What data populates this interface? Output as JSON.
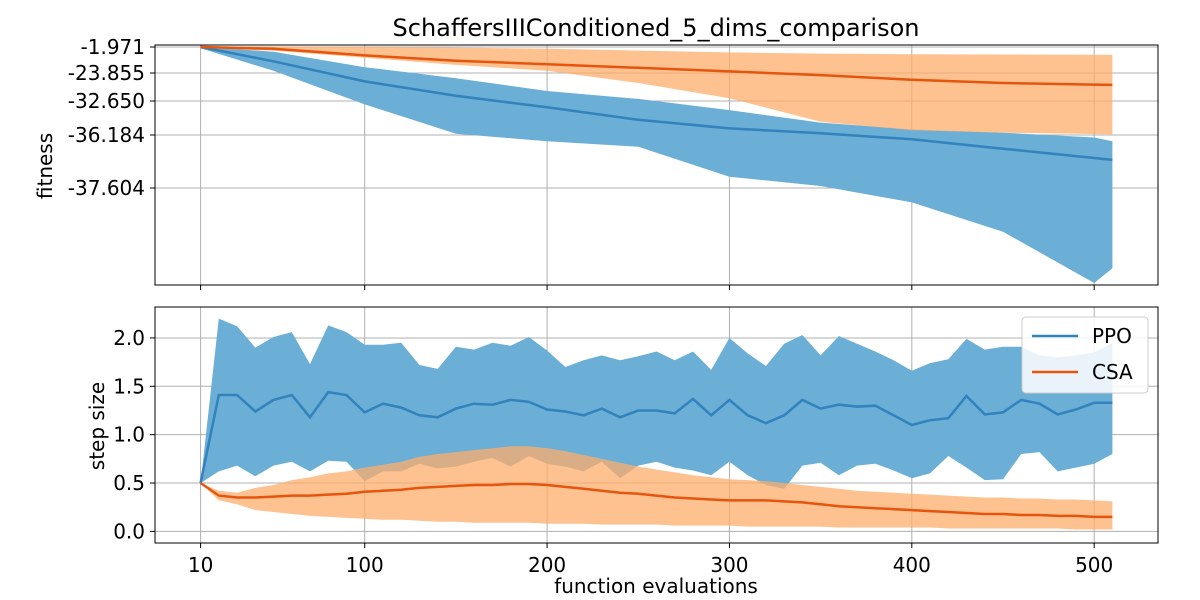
{
  "title": "SchaffersIIIConditioned_5_dims_comparison",
  "chart_data": [
    {
      "type": "line",
      "panel": "top",
      "ylabel": "fitness",
      "y_scale": "nonlinear (tick labels unevenly spaced)",
      "y_tick_labels": [
        "-1.971",
        "-23.855",
        "-32.650",
        "-36.184",
        "-37.604"
      ],
      "x_ticks": [
        10,
        100,
        200,
        300,
        400,
        500
      ],
      "grid": true,
      "series": [
        {
          "name": "PPO",
          "color": "#3182bd",
          "x": [
            10,
            50,
            100,
            150,
            200,
            250,
            300,
            350,
            400,
            450,
            500,
            510
          ],
          "mean": [
            -1.971,
            -14.0,
            -26.5,
            -31.0,
            -33.3,
            -34.6,
            -35.5,
            -36.0,
            -36.3,
            -36.55,
            -36.8,
            -36.85
          ],
          "lower": [
            -3.0,
            -22.0,
            -33.0,
            -36.05,
            -36.35,
            -36.5,
            -37.3,
            -37.55,
            -37.8,
            -38.2,
            -38.9,
            -38.7
          ],
          "upper": [
            -1.5,
            -6.0,
            -19.0,
            -25.5,
            -29.5,
            -32.0,
            -33.6,
            -34.9,
            -35.6,
            -35.95,
            -36.25,
            -36.35
          ]
        },
        {
          "name": "CSA",
          "color": "#e6550d",
          "x": [
            10,
            50,
            100,
            150,
            200,
            250,
            300,
            350,
            400,
            450,
            500,
            510
          ],
          "mean": [
            -1.971,
            -3.5,
            -9.0,
            -13.5,
            -16.5,
            -19.5,
            -22.5,
            -24.5,
            -26.0,
            -27.0,
            -27.5,
            -27.6
          ],
          "lower": [
            -3.0,
            -5.0,
            -11.0,
            -17.0,
            -22.0,
            -27.0,
            -31.8,
            -34.8,
            -35.7,
            -35.95,
            -36.08,
            -36.1
          ],
          "upper": [
            -1.3,
            -1.6,
            -1.8,
            -2.5,
            -3.5,
            -5.0,
            -6.5,
            -7.5,
            -8.0,
            -8.3,
            -8.5,
            -8.5
          ]
        }
      ]
    },
    {
      "type": "line",
      "panel": "bottom",
      "xlabel": "function evaluations",
      "ylabel": "step size",
      "xlim": [
        -15,
        535
      ],
      "ylim": [
        -0.12,
        2.32
      ],
      "x_ticks": [
        10,
        100,
        200,
        300,
        400,
        500
      ],
      "y_ticks": [
        0.0,
        0.5,
        1.0,
        1.5,
        2.0
      ],
      "y_tick_labels": [
        "0.0",
        "0.5",
        "1.0",
        "1.5",
        "2.0"
      ],
      "grid": true,
      "legend": "top-right",
      "series": [
        {
          "name": "PPO",
          "color": "#3182bd",
          "x": [
            10,
            20,
            30,
            40,
            50,
            60,
            70,
            80,
            90,
            100,
            110,
            120,
            130,
            140,
            150,
            160,
            170,
            180,
            190,
            200,
            210,
            220,
            230,
            240,
            250,
            260,
            270,
            280,
            290,
            300,
            310,
            320,
            330,
            340,
            350,
            360,
            370,
            380,
            390,
            400,
            410,
            420,
            430,
            440,
            450,
            460,
            470,
            480,
            490,
            500,
            510
          ],
          "mean": [
            0.5,
            1.41,
            1.41,
            1.24,
            1.36,
            1.41,
            1.18,
            1.44,
            1.41,
            1.23,
            1.32,
            1.28,
            1.2,
            1.18,
            1.27,
            1.32,
            1.31,
            1.36,
            1.34,
            1.26,
            1.24,
            1.2,
            1.27,
            1.18,
            1.25,
            1.25,
            1.22,
            1.37,
            1.2,
            1.36,
            1.2,
            1.12,
            1.2,
            1.36,
            1.27,
            1.31,
            1.29,
            1.3,
            1.2,
            1.1,
            1.15,
            1.17,
            1.4,
            1.21,
            1.23,
            1.36,
            1.32,
            1.21,
            1.26,
            1.33,
            1.33
          ],
          "lower": [
            0.5,
            0.62,
            0.68,
            0.57,
            0.68,
            0.72,
            0.62,
            0.73,
            0.72,
            0.52,
            0.62,
            0.62,
            0.7,
            0.65,
            0.67,
            0.72,
            0.76,
            0.67,
            0.78,
            0.7,
            0.67,
            0.62,
            0.72,
            0.55,
            0.68,
            0.72,
            0.66,
            0.63,
            0.58,
            0.72,
            0.58,
            0.48,
            0.44,
            0.68,
            0.71,
            0.58,
            0.68,
            0.7,
            0.63,
            0.55,
            0.6,
            0.78,
            0.66,
            0.53,
            0.54,
            0.8,
            0.82,
            0.62,
            0.66,
            0.7,
            0.8
          ],
          "upper": [
            0.5,
            2.2,
            2.12,
            1.9,
            2.01,
            2.06,
            1.73,
            2.13,
            2.06,
            1.93,
            1.93,
            1.95,
            1.72,
            1.68,
            1.91,
            1.88,
            1.95,
            1.92,
            2.01,
            1.87,
            1.7,
            1.77,
            1.82,
            1.77,
            1.81,
            1.86,
            1.77,
            1.86,
            1.67,
            2.0,
            1.84,
            1.71,
            1.94,
            2.03,
            1.82,
            2.02,
            1.94,
            1.86,
            1.77,
            1.66,
            1.74,
            1.78,
            1.99,
            1.88,
            1.91,
            1.91,
            1.82,
            1.8,
            1.82,
            1.85,
            1.95
          ]
        },
        {
          "name": "CSA",
          "color": "#e6550d",
          "x": [
            10,
            20,
            30,
            40,
            50,
            60,
            70,
            80,
            90,
            100,
            110,
            120,
            130,
            140,
            150,
            160,
            170,
            180,
            190,
            200,
            210,
            220,
            230,
            240,
            250,
            260,
            270,
            280,
            290,
            300,
            310,
            320,
            330,
            340,
            350,
            360,
            370,
            380,
            390,
            400,
            410,
            420,
            430,
            440,
            450,
            460,
            470,
            480,
            490,
            500,
            510
          ],
          "mean": [
            0.5,
            0.37,
            0.35,
            0.35,
            0.36,
            0.37,
            0.37,
            0.38,
            0.39,
            0.41,
            0.42,
            0.43,
            0.45,
            0.46,
            0.47,
            0.48,
            0.48,
            0.49,
            0.49,
            0.48,
            0.46,
            0.44,
            0.42,
            0.4,
            0.39,
            0.37,
            0.35,
            0.34,
            0.33,
            0.32,
            0.32,
            0.32,
            0.31,
            0.3,
            0.28,
            0.26,
            0.25,
            0.24,
            0.23,
            0.22,
            0.21,
            0.2,
            0.19,
            0.18,
            0.18,
            0.17,
            0.17,
            0.16,
            0.16,
            0.15,
            0.15
          ],
          "lower": [
            0.5,
            0.32,
            0.28,
            0.22,
            0.2,
            0.18,
            0.16,
            0.15,
            0.14,
            0.13,
            0.12,
            0.12,
            0.11,
            0.1,
            0.1,
            0.09,
            0.09,
            0.09,
            0.09,
            0.08,
            0.08,
            0.08,
            0.07,
            0.07,
            0.07,
            0.07,
            0.06,
            0.06,
            0.06,
            0.06,
            0.05,
            0.05,
            0.05,
            0.05,
            0.05,
            0.04,
            0.04,
            0.04,
            0.04,
            0.04,
            0.04,
            0.03,
            0.03,
            0.03,
            0.03,
            0.03,
            0.03,
            0.03,
            0.02,
            0.02,
            0.02
          ],
          "upper": [
            0.5,
            0.42,
            0.4,
            0.45,
            0.48,
            0.53,
            0.56,
            0.6,
            0.62,
            0.66,
            0.69,
            0.72,
            0.77,
            0.8,
            0.82,
            0.84,
            0.86,
            0.88,
            0.88,
            0.86,
            0.83,
            0.79,
            0.75,
            0.71,
            0.67,
            0.64,
            0.61,
            0.58,
            0.56,
            0.54,
            0.53,
            0.52,
            0.5,
            0.48,
            0.46,
            0.44,
            0.42,
            0.41,
            0.4,
            0.39,
            0.38,
            0.37,
            0.36,
            0.35,
            0.35,
            0.34,
            0.34,
            0.33,
            0.33,
            0.32,
            0.31
          ]
        }
      ]
    }
  ]
}
